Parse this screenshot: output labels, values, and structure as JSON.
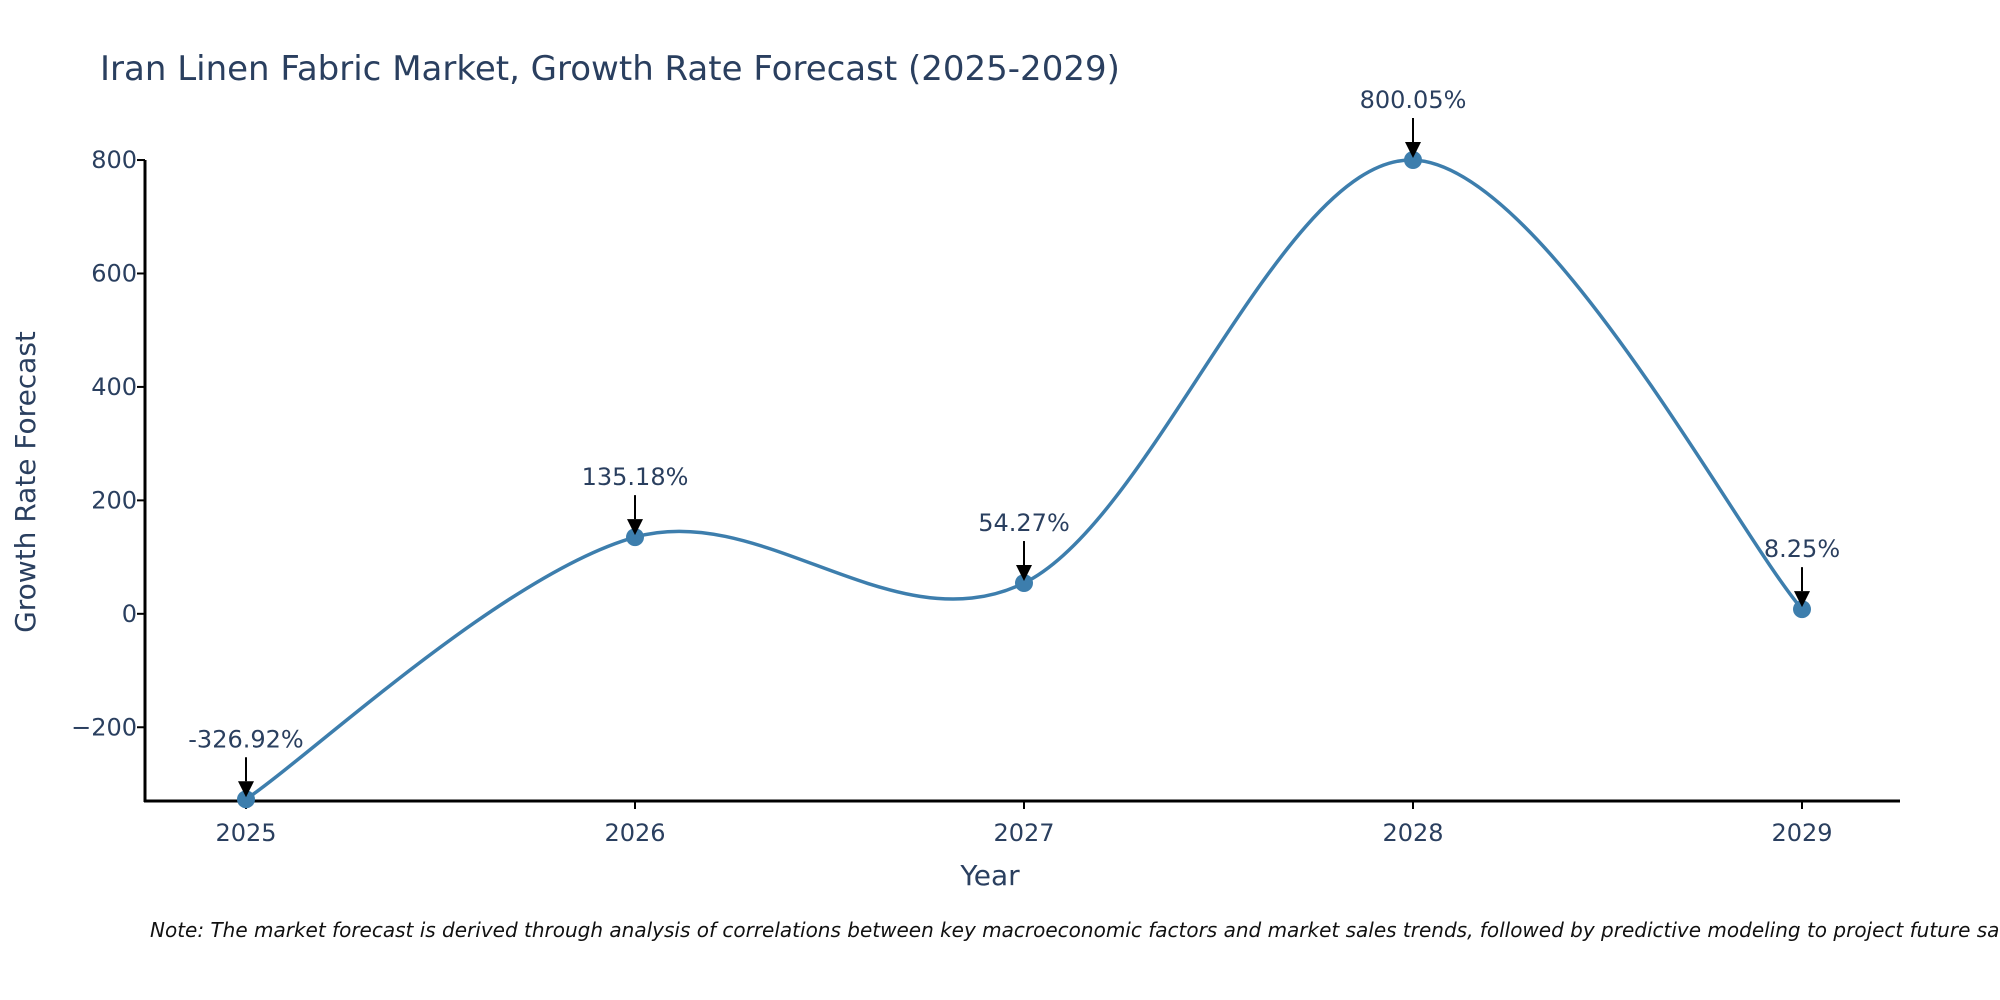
{
  "chart_data": {
    "type": "line",
    "title": "Iran Linen Fabric Market, Growth Rate Forecast (2025-2029)",
    "xlabel": "Year",
    "ylabel": "Growth Rate Forecast",
    "x": [
      "2025",
      "2026",
      "2027",
      "2028",
      "2029"
    ],
    "values": [
      -326.92,
      135.18,
      54.27,
      800.05,
      8.25
    ],
    "labels": [
      "-326.92%",
      "135.18%",
      "54.27%",
      "800.05%",
      "8.25%"
    ],
    "yticks": [
      -200,
      0,
      200,
      400,
      600,
      800
    ],
    "ytick_labels": [
      "−200",
      "0",
      "200",
      "400",
      "600",
      "800"
    ],
    "ylim": [
      -330,
      800.05
    ],
    "line_color": "#3d7ead",
    "smoothing": "spline"
  },
  "note": "Note: The market forecast is derived through analysis of correlations between key macroeconomic factors and market sales trends, followed by predictive modeling to project future sales."
}
